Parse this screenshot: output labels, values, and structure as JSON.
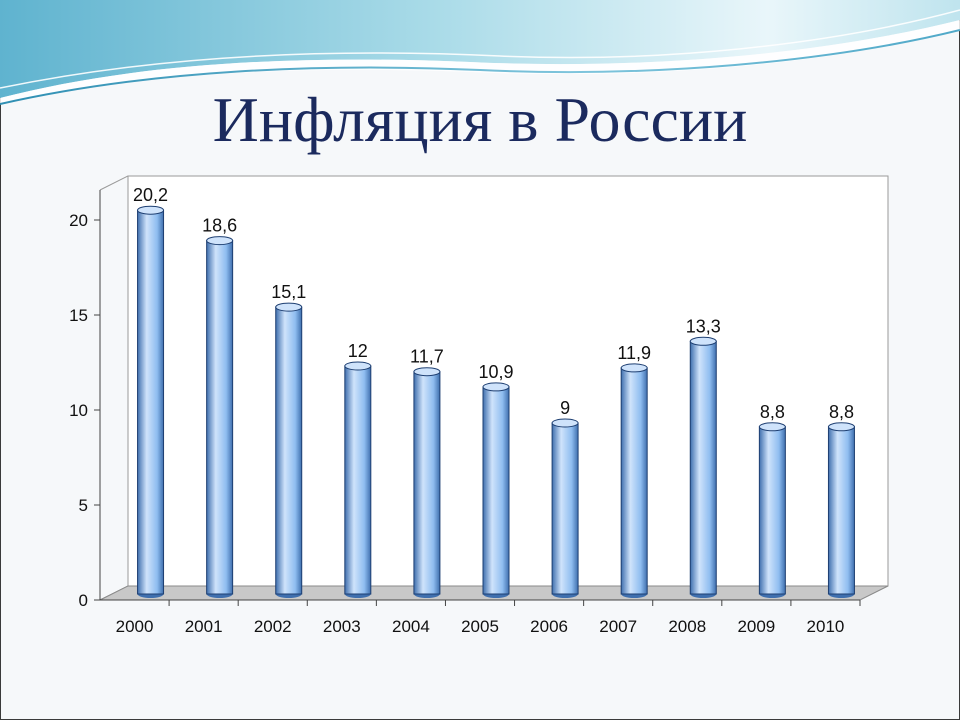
{
  "slide": {
    "title": "Инфляция в России"
  },
  "chart_data": {
    "type": "bar",
    "title": "",
    "xlabel": "",
    "ylabel": "",
    "categories": [
      "2000",
      "2001",
      "2002",
      "2003",
      "2004",
      "2005",
      "2006",
      "2007",
      "2008",
      "2009",
      "2010"
    ],
    "values": [
      20.2,
      18.6,
      15.1,
      12,
      11.7,
      10.9,
      9,
      11.9,
      13.3,
      8.8,
      8.8
    ],
    "value_labels": [
      "20,2",
      "18,6",
      "15,1",
      "12",
      "11,7",
      "10,9",
      "9",
      "11,9",
      "13,3",
      "8,8",
      "8,8"
    ],
    "y_ticks": [
      "0",
      "5",
      "10",
      "15",
      "20"
    ],
    "ylim": [
      0,
      20
    ],
    "grid": false,
    "legend": "none",
    "style": "3d-cylinder",
    "colors": {
      "bar_fill": "#8fbdf0",
      "bar_light": "#cfe3fb",
      "bar_dark": "#3f6fae",
      "bar_outline": "#1e3f72",
      "floor": "#c8c8c8"
    }
  }
}
